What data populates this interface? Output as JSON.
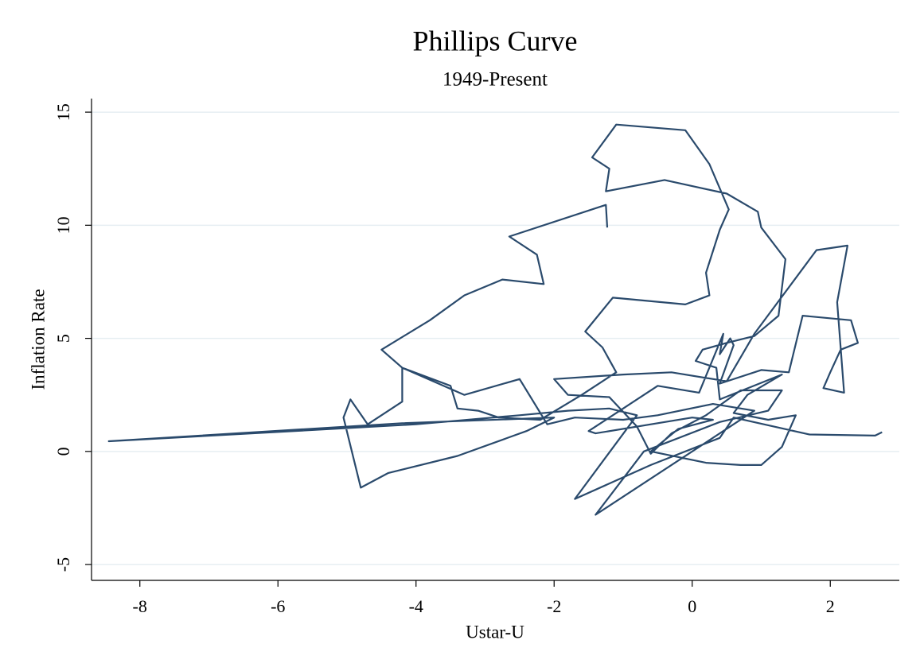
{
  "chart_data": {
    "type": "line",
    "title": "Phillips Curve",
    "subtitle": "1949-Present",
    "x_label": "Ustar-U",
    "y_label": "Inflation Rate",
    "xlim": [
      -8.7,
      3.0
    ],
    "ylim": [
      -5.7,
      15.6
    ],
    "xticks": [
      -8,
      -6,
      -4,
      -2,
      0,
      2
    ],
    "yticks": [
      -5,
      0,
      5,
      10,
      15
    ],
    "grid": true,
    "color": "#2a4a6c",
    "title_color": "#1e3458",
    "x": [
      -1.23,
      -1.25,
      -2.65,
      -2.25,
      -2.15,
      -2.75,
      -3.3,
      -3.8,
      -4.5,
      -4.2,
      -3.5,
      -3.4,
      -3.1,
      -2.8,
      -2.2,
      -1.6,
      -1.1,
      -1.3,
      -1.55,
      -1.15,
      -0.1,
      0.25,
      0.2,
      0.4,
      0.53,
      0.25,
      -0.1,
      -1.1,
      -1.45,
      -1.2,
      -1.25,
      -0.4,
      0.5,
      0.95,
      1.0,
      1.35,
      1.25,
      0.9,
      0.5,
      0.15,
      0.05,
      0.35,
      0.4,
      1.3,
      0.8,
      0.6,
      1.1,
      1.5,
      1.3,
      1.0,
      0.7,
      0.2,
      -0.6,
      -0.2,
      0.3,
      0.0,
      -1.4,
      -1.5,
      -1.0,
      -0.5,
      0.1,
      0.45,
      0.4,
      0.55,
      0.6,
      0.4,
      1.0,
      1.4,
      1.6,
      2.3,
      2.4,
      2.15,
      2.0,
      1.9,
      2.2,
      2.1,
      2.25,
      1.8,
      0.9,
      0.5,
      -0.3,
      -1.0,
      -2.0,
      -1.8,
      -1.2,
      -0.8,
      -0.6,
      -0.3,
      0.2,
      0.7,
      1.3,
      1.1,
      0.4,
      -0.7,
      -1.4,
      0.9,
      0.3,
      -0.5,
      -1.0,
      -1.7,
      -2.1,
      -2.5,
      -3.3,
      -4.2,
      -4.2,
      -4.7,
      -4.95,
      -5.05,
      -4.8,
      -4.4,
      -3.4,
      -2.4,
      -2.0,
      -4.2,
      -8.45,
      -4.0,
      -2.5,
      -1.8,
      -1.2,
      -0.8,
      -1.7,
      -0.6,
      0.4,
      0.6,
      1.7,
      2.65,
      2.75
    ],
    "values": [
      9.9,
      10.9,
      9.5,
      8.7,
      7.4,
      7.6,
      6.9,
      5.8,
      4.5,
      3.7,
      2.9,
      1.9,
      1.8,
      1.5,
      1.4,
      2.5,
      3.5,
      4.6,
      5.3,
      6.8,
      6.5,
      6.9,
      7.9,
      9.8,
      10.7,
      12.7,
      14.2,
      14.45,
      13.0,
      12.5,
      11.5,
      12.0,
      11.4,
      10.6,
      9.9,
      8.5,
      6.0,
      5.1,
      4.8,
      4.5,
      4.0,
      3.7,
      2.3,
      3.4,
      2.5,
      1.7,
      1.4,
      1.6,
      0.2,
      -0.6,
      -0.6,
      -0.5,
      0.0,
      1.0,
      1.4,
      1.5,
      0.8,
      0.9,
      1.9,
      2.9,
      2.6,
      5.2,
      4.3,
      5.0,
      4.7,
      3.0,
      3.6,
      3.5,
      6.0,
      5.8,
      4.8,
      4.5,
      3.5,
      2.8,
      2.6,
      6.6,
      9.1,
      8.9,
      5.2,
      3.1,
      3.5,
      3.4,
      3.2,
      2.5,
      2.4,
      1.1,
      -0.1,
      0.8,
      1.6,
      2.7,
      2.7,
      1.8,
      1.3,
      0.0,
      -2.8,
      1.8,
      2.1,
      1.6,
      1.4,
      1.5,
      1.2,
      3.2,
      2.5,
      3.7,
      2.2,
      1.2,
      2.3,
      1.5,
      -1.6,
      -0.95,
      -0.2,
      0.9,
      1.5,
      1.25,
      0.45,
      1.2,
      1.6,
      1.8,
      1.9,
      1.6,
      -2.1,
      -0.6,
      0.6,
      1.5,
      0.75,
      0.7,
      0.85
    ]
  }
}
